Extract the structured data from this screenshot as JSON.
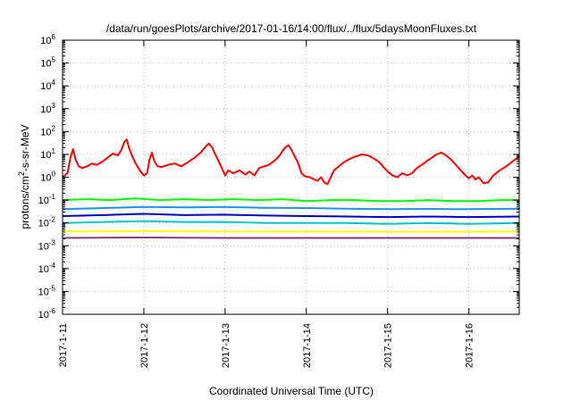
{
  "chart_data": {
    "type": "line",
    "title": "/data/run/goesPlots/archive/2017-01-16/14:00/flux/../flux/5daysMoonFluxes.txt",
    "xlabel": "Coordinated Universal Time (UTC)",
    "ylabel_parts": [
      "protons/cm",
      "2",
      "-s-sr-MeV"
    ],
    "xlim": [
      0,
      5.62
    ],
    "x_ticks": [
      {
        "x": 0,
        "label": "2017-1-11"
      },
      {
        "x": 1,
        "label": "2017-1-12"
      },
      {
        "x": 2,
        "label": "2017-1-13"
      },
      {
        "x": 3,
        "label": "2017-1-14"
      },
      {
        "x": 4,
        "label": "2017-1-15"
      },
      {
        "x": 5,
        "label": "2017-1-16"
      }
    ],
    "y_scale": "log",
    "ylim_exponents": [
      -6,
      6
    ],
    "y_tick_base": "10",
    "grid": true,
    "x_unit_note": "days after 2017-1-11 00:00 UTC",
    "series": [
      {
        "color": "#ff0000",
        "values": [
          [
            0.0,
            1.0
          ],
          [
            0.06,
            1.5
          ],
          [
            0.1,
            8
          ],
          [
            0.13,
            17
          ],
          [
            0.16,
            6
          ],
          [
            0.2,
            3
          ],
          [
            0.24,
            2.5
          ],
          [
            0.3,
            3
          ],
          [
            0.36,
            4
          ],
          [
            0.42,
            3.5
          ],
          [
            0.48,
            4.5
          ],
          [
            0.55,
            7
          ],
          [
            0.62,
            11
          ],
          [
            0.68,
            9
          ],
          [
            0.72,
            15
          ],
          [
            0.76,
            35
          ],
          [
            0.79,
            45
          ],
          [
            0.82,
            18
          ],
          [
            0.86,
            8
          ],
          [
            0.9,
            4
          ],
          [
            0.95,
            2
          ],
          [
            1.0,
            1.2
          ],
          [
            1.04,
            1.5
          ],
          [
            1.07,
            6
          ],
          [
            1.1,
            12
          ],
          [
            1.13,
            5
          ],
          [
            1.17,
            3
          ],
          [
            1.22,
            2.8
          ],
          [
            1.3,
            3.5
          ],
          [
            1.38,
            4
          ],
          [
            1.46,
            3
          ],
          [
            1.54,
            4.5
          ],
          [
            1.62,
            7
          ],
          [
            1.7,
            12
          ],
          [
            1.76,
            22
          ],
          [
            1.8,
            30
          ],
          [
            1.84,
            20
          ],
          [
            1.88,
            10
          ],
          [
            1.92,
            5
          ],
          [
            1.96,
            2.5
          ],
          [
            2.0,
            1.2
          ],
          [
            2.04,
            2
          ],
          [
            2.1,
            1.5
          ],
          [
            2.18,
            2
          ],
          [
            2.25,
            1.3
          ],
          [
            2.3,
            1.8
          ],
          [
            2.36,
            1.2
          ],
          [
            2.42,
            2.5
          ],
          [
            2.48,
            3
          ],
          [
            2.54,
            3.5
          ],
          [
            2.6,
            5
          ],
          [
            2.66,
            8
          ],
          [
            2.7,
            13
          ],
          [
            2.74,
            20
          ],
          [
            2.78,
            25
          ],
          [
            2.82,
            15
          ],
          [
            2.86,
            8
          ],
          [
            2.9,
            4
          ],
          [
            2.94,
            1.5
          ],
          [
            2.98,
            1.1
          ],
          [
            3.04,
            1
          ],
          [
            3.1,
            0.8
          ],
          [
            3.14,
            0.7
          ],
          [
            3.18,
            1.0
          ],
          [
            3.22,
            0.6
          ],
          [
            3.26,
            0.5
          ],
          [
            3.3,
            1.0
          ],
          [
            3.34,
            2
          ],
          [
            3.4,
            3
          ],
          [
            3.46,
            4.5
          ],
          [
            3.52,
            6
          ],
          [
            3.6,
            8
          ],
          [
            3.68,
            10
          ],
          [
            3.76,
            9
          ],
          [
            3.82,
            7
          ],
          [
            3.9,
            4.5
          ],
          [
            3.96,
            2.5
          ],
          [
            4.0,
            1.8
          ],
          [
            4.06,
            1.2
          ],
          [
            4.12,
            1.0
          ],
          [
            4.18,
            1.5
          ],
          [
            4.24,
            1.2
          ],
          [
            4.3,
            1.5
          ],
          [
            4.36,
            2.5
          ],
          [
            4.42,
            3.5
          ],
          [
            4.48,
            5
          ],
          [
            4.54,
            7
          ],
          [
            4.6,
            10
          ],
          [
            4.66,
            12
          ],
          [
            4.72,
            9
          ],
          [
            4.78,
            6
          ],
          [
            4.84,
            3.5
          ],
          [
            4.9,
            2
          ],
          [
            4.96,
            1.2
          ],
          [
            5.0,
            0.9
          ],
          [
            5.04,
            1.2
          ],
          [
            5.08,
            0.8
          ],
          [
            5.12,
            1.0
          ],
          [
            5.18,
            0.55
          ],
          [
            5.24,
            0.6
          ],
          [
            5.3,
            1.2
          ],
          [
            5.38,
            2
          ],
          [
            5.46,
            3
          ],
          [
            5.54,
            5
          ],
          [
            5.62,
            8
          ]
        ]
      },
      {
        "color": "#00ff00",
        "values": [
          [
            0.0,
            0.1
          ],
          [
            0.3,
            0.11
          ],
          [
            0.6,
            0.1
          ],
          [
            0.9,
            0.12
          ],
          [
            1.2,
            0.1
          ],
          [
            1.5,
            0.11
          ],
          [
            1.8,
            0.1
          ],
          [
            2.1,
            0.11
          ],
          [
            2.4,
            0.1
          ],
          [
            2.7,
            0.11
          ],
          [
            3.0,
            0.09
          ],
          [
            3.3,
            0.1
          ],
          [
            3.6,
            0.1
          ],
          [
            3.9,
            0.09
          ],
          [
            4.2,
            0.09
          ],
          [
            4.5,
            0.1
          ],
          [
            4.8,
            0.09
          ],
          [
            5.1,
            0.09
          ],
          [
            5.4,
            0.1
          ],
          [
            5.62,
            0.1
          ]
        ]
      },
      {
        "color": "#1e90ff",
        "values": [
          [
            0.0,
            0.04
          ],
          [
            0.5,
            0.045
          ],
          [
            1.0,
            0.05
          ],
          [
            1.5,
            0.048
          ],
          [
            2.0,
            0.05
          ],
          [
            2.5,
            0.046
          ],
          [
            3.0,
            0.045
          ],
          [
            3.5,
            0.042
          ],
          [
            4.0,
            0.04
          ],
          [
            4.5,
            0.041
          ],
          [
            5.0,
            0.04
          ],
          [
            5.62,
            0.042
          ]
        ]
      },
      {
        "color": "#0000cc",
        "values": [
          [
            0.0,
            0.02
          ],
          [
            0.5,
            0.022
          ],
          [
            1.0,
            0.025
          ],
          [
            1.5,
            0.022
          ],
          [
            2.0,
            0.023
          ],
          [
            2.5,
            0.021
          ],
          [
            3.0,
            0.02
          ],
          [
            3.5,
            0.019
          ],
          [
            4.0,
            0.018
          ],
          [
            4.5,
            0.019
          ],
          [
            5.0,
            0.018
          ],
          [
            5.62,
            0.019
          ]
        ]
      },
      {
        "color": "#00c8c8",
        "values": [
          [
            0.0,
            0.01
          ],
          [
            0.5,
            0.011
          ],
          [
            1.0,
            0.012
          ],
          [
            1.5,
            0.011
          ],
          [
            2.0,
            0.011
          ],
          [
            2.5,
            0.01
          ],
          [
            3.0,
            0.01
          ],
          [
            3.5,
            0.01
          ],
          [
            4.0,
            0.009
          ],
          [
            4.5,
            0.01
          ],
          [
            5.0,
            0.009
          ],
          [
            5.62,
            0.01
          ]
        ]
      },
      {
        "color": "#ffff00",
        "values": [
          [
            0.0,
            0.0042
          ],
          [
            1.0,
            0.0043
          ],
          [
            2.0,
            0.0042
          ],
          [
            3.0,
            0.0042
          ],
          [
            4.0,
            0.0041
          ],
          [
            5.0,
            0.0041
          ],
          [
            5.62,
            0.0042
          ]
        ]
      },
      {
        "color": "#7f3f7f",
        "values": [
          [
            0.0,
            0.0022
          ],
          [
            1.0,
            0.0023
          ],
          [
            2.0,
            0.0022
          ],
          [
            3.0,
            0.0022
          ],
          [
            4.0,
            0.0022
          ],
          [
            5.0,
            0.0022
          ],
          [
            5.62,
            0.0022
          ]
        ]
      }
    ]
  }
}
